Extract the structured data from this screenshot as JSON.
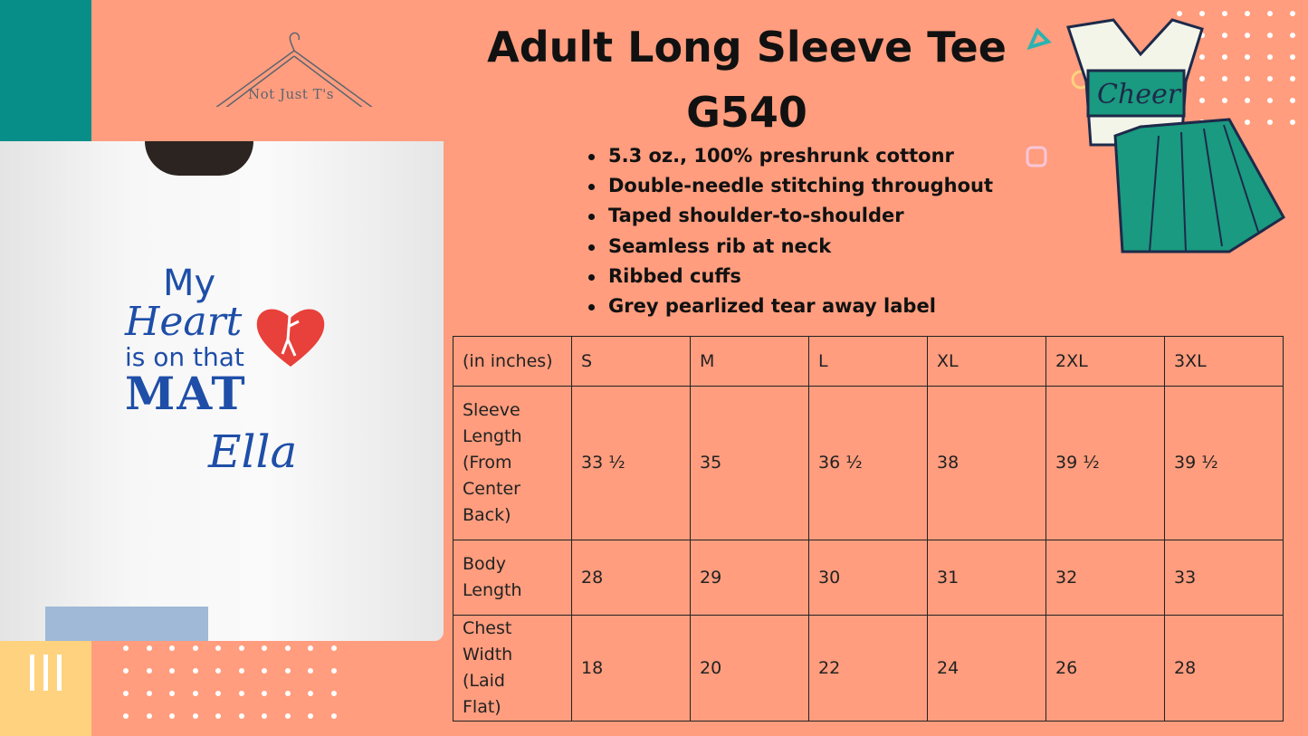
{
  "brand": {
    "logo_text": "Not Just T's"
  },
  "product": {
    "title_line1": "Adult Long Sleeve Tee",
    "title_line2": "G540"
  },
  "features": [
    "5.3 oz., 100% preshrunk cottonr",
    "Double-needle stitching throughout",
    "Taped shoulder-to-shoulder",
    "Seamless rib at neck",
    "Ribbed cuffs",
    "Grey pearlized tear away label"
  ],
  "shirt_design": {
    "line1": "My",
    "line2": "Heart",
    "line3": "is on that",
    "line4": "MAT",
    "name": "Ella"
  },
  "cheer_graphic": {
    "text": "Cheer"
  },
  "size_table": {
    "headers": [
      "(in inches)",
      "S",
      "M",
      "L",
      "XL",
      "2XL",
      "3XL"
    ],
    "rows": [
      {
        "label": "Sleeve Length (From Center Back)",
        "values": [
          "33 ½",
          "35",
          "36 ½",
          "38",
          "39 ½",
          "39 ½"
        ]
      },
      {
        "label": "Body Length",
        "values": [
          "28",
          "29",
          "30",
          "31",
          "32",
          "33"
        ]
      },
      {
        "label": "Chest Width (Laid Flat)",
        "values": [
          "18",
          "20",
          "22",
          "24",
          "26",
          "28"
        ]
      }
    ]
  },
  "colors": {
    "background": "#FF9D7E",
    "teal": "#078E88",
    "yellow": "#FFD27F",
    "design_blue": "#1E4EA8",
    "heart_red": "#E8403A"
  }
}
